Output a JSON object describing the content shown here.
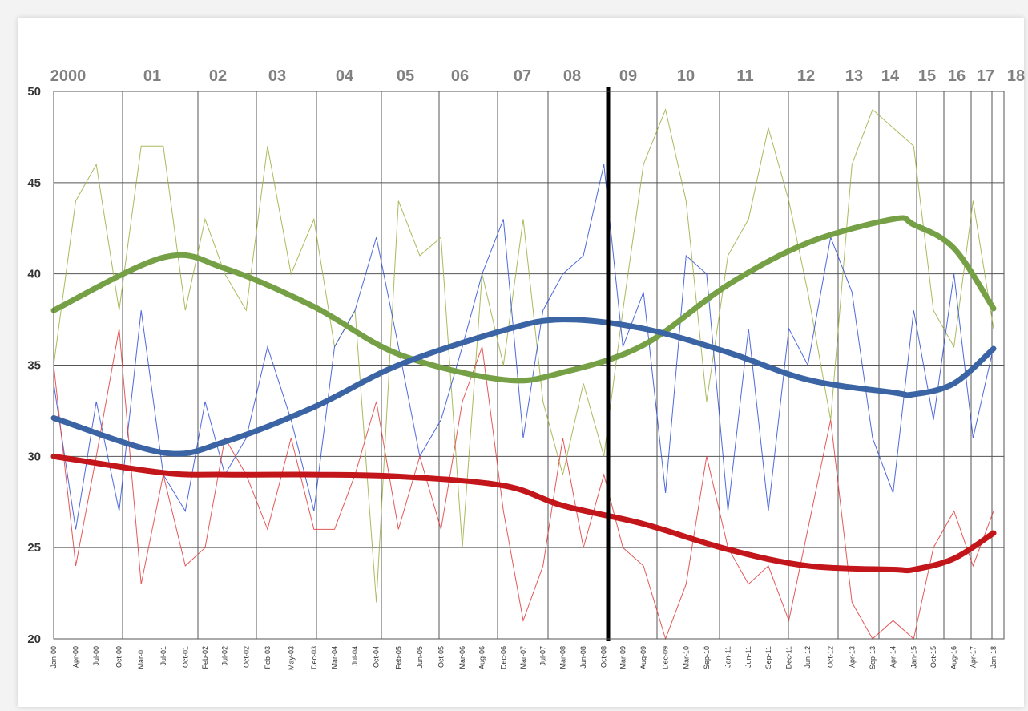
{
  "chart_data": {
    "type": "line",
    "ylim": [
      20,
      50
    ],
    "yticks": [
      20,
      25,
      30,
      35,
      40,
      45,
      50
    ],
    "grid": true,
    "x_monthly_labels": [
      "Jan-00",
      "Apr-00",
      "Jul-00",
      "Oct-00",
      "Mar-01",
      "Jul-01",
      "Oct-01",
      "Feb-02",
      "Jul-02",
      "Oct-02",
      "Feb-03",
      "May-03",
      "Dec-03",
      "Mar-04",
      "Jul-04",
      "Oct-04",
      "Feb-05",
      "Jun-05",
      "Oct-05",
      "Mar-06",
      "Aug-06",
      "Dec-06",
      "Mar-07",
      "Jul-07",
      "Mar-08",
      "Jun-08",
      "Oct-08",
      "Mar-09",
      "Aug-09",
      "Dec-09",
      "Mar-10",
      "Sep-10",
      "Jan-11",
      "Jun-11",
      "Sep-11",
      "Dec-11",
      "Jun-12",
      "Oct-12",
      "Apr-13",
      "Sep-13",
      "Apr-14",
      "Jan-15",
      "Oct-15",
      "Aug-16",
      "Apr-17",
      "Jan-18"
    ],
    "x_year_labels": [
      "2000",
      "01",
      "02",
      "03",
      "04",
      "05",
      "06",
      "07",
      "08",
      "09",
      "10",
      "11",
      "12",
      "13",
      "14",
      "15",
      "16",
      "17",
      "18"
    ],
    "vertical_marker": "Feb-09",
    "series": [
      {
        "color": "#9aaf3f",
        "style": "thin",
        "points": [
          [
            "Jan-00",
            35
          ],
          [
            "Apr-00",
            44
          ],
          [
            "Jul-00",
            46
          ],
          [
            "Oct-00",
            38
          ],
          [
            "Mar-01",
            47
          ],
          [
            "Jul-01",
            47
          ],
          [
            "Oct-01",
            38
          ],
          [
            "Feb-02",
            43
          ],
          [
            "Jul-02",
            40
          ],
          [
            "Oct-02",
            38
          ],
          [
            "Feb-03",
            47
          ],
          [
            "May-03",
            40
          ],
          [
            "Dec-03",
            43
          ],
          [
            "Mar-04",
            36
          ],
          [
            "Jul-04",
            38
          ],
          [
            "Oct-04",
            22
          ],
          [
            "Feb-05",
            44
          ],
          [
            "Jun-05",
            41
          ],
          [
            "Oct-05",
            42
          ],
          [
            "Mar-06",
            25
          ],
          [
            "Aug-06",
            40
          ],
          [
            "Dec-06",
            35
          ],
          [
            "Mar-07",
            43
          ],
          [
            "Jul-07",
            33
          ],
          [
            "Mar-08",
            29
          ],
          [
            "Jun-08",
            34
          ],
          [
            "Oct-08",
            30
          ],
          [
            "Mar-09",
            38
          ],
          [
            "Aug-09",
            46
          ],
          [
            "Dec-09",
            49
          ],
          [
            "Mar-10",
            44
          ],
          [
            "Sep-10",
            33
          ],
          [
            "Jan-11",
            41
          ],
          [
            "Jun-11",
            43
          ],
          [
            "Sep-11",
            48
          ],
          [
            "Dec-11",
            44
          ],
          [
            "Jun-12",
            39
          ],
          [
            "Oct-12",
            32
          ],
          [
            "Apr-13",
            46
          ],
          [
            "Sep-13",
            49
          ],
          [
            "Apr-14",
            48
          ],
          [
            "Jan-15",
            47
          ],
          [
            "Oct-15",
            38
          ],
          [
            "Aug-16",
            36
          ],
          [
            "Apr-17",
            44
          ],
          [
            "Jan-18",
            37
          ]
        ]
      },
      {
        "color": "#2f4fd6",
        "style": "thin",
        "points": [
          [
            "Jan-00",
            34
          ],
          [
            "Apr-00",
            26
          ],
          [
            "Jul-00",
            33
          ],
          [
            "Oct-00",
            27
          ],
          [
            "Mar-01",
            38
          ],
          [
            "Jul-01",
            29
          ],
          [
            "Oct-01",
            27
          ],
          [
            "Feb-02",
            33
          ],
          [
            "Jul-02",
            29
          ],
          [
            "Oct-02",
            31
          ],
          [
            "Feb-03",
            36
          ],
          [
            "May-03",
            32
          ],
          [
            "Dec-03",
            27
          ],
          [
            "Mar-04",
            36
          ],
          [
            "Jul-04",
            38
          ],
          [
            "Oct-04",
            42
          ],
          [
            "Feb-05",
            36
          ],
          [
            "Jun-05",
            30
          ],
          [
            "Oct-05",
            32
          ],
          [
            "Mar-06",
            36
          ],
          [
            "Aug-06",
            40
          ],
          [
            "Dec-06",
            43
          ],
          [
            "Mar-07",
            31
          ],
          [
            "Jul-07",
            38
          ],
          [
            "Mar-08",
            40
          ],
          [
            "Jun-08",
            41
          ],
          [
            "Oct-08",
            46
          ],
          [
            "Mar-09",
            36
          ],
          [
            "Aug-09",
            39
          ],
          [
            "Dec-09",
            28
          ],
          [
            "Mar-10",
            41
          ],
          [
            "Sep-10",
            40
          ],
          [
            "Jan-11",
            27
          ],
          [
            "Jun-11",
            37
          ],
          [
            "Sep-11",
            27
          ],
          [
            "Dec-11",
            37
          ],
          [
            "Jun-12",
            35
          ],
          [
            "Oct-12",
            42
          ],
          [
            "Apr-13",
            39
          ],
          [
            "Sep-13",
            31
          ],
          [
            "Apr-14",
            28
          ],
          [
            "Jan-15",
            38
          ],
          [
            "Oct-15",
            32
          ],
          [
            "Aug-16",
            40
          ],
          [
            "Apr-17",
            31
          ],
          [
            "Jan-18",
            36
          ]
        ]
      },
      {
        "color": "#e03b3b",
        "style": "thin",
        "points": [
          [
            "Jan-00",
            35
          ],
          [
            "Apr-00",
            24
          ],
          [
            "Jul-00",
            30
          ],
          [
            "Oct-00",
            37
          ],
          [
            "Mar-01",
            23
          ],
          [
            "Jul-01",
            29
          ],
          [
            "Oct-01",
            24
          ],
          [
            "Feb-02",
            25
          ],
          [
            "Jul-02",
            31
          ],
          [
            "Oct-02",
            29
          ],
          [
            "Feb-03",
            26
          ],
          [
            "May-03",
            31
          ],
          [
            "Dec-03",
            26
          ],
          [
            "Mar-04",
            26
          ],
          [
            "Jul-04",
            29
          ],
          [
            "Oct-04",
            33
          ],
          [
            "Feb-05",
            26
          ],
          [
            "Jun-05",
            30
          ],
          [
            "Oct-05",
            26
          ],
          [
            "Mar-06",
            33
          ],
          [
            "Aug-06",
            36
          ],
          [
            "Dec-06",
            27
          ],
          [
            "Mar-07",
            21
          ],
          [
            "Jul-07",
            24
          ],
          [
            "Mar-08",
            31
          ],
          [
            "Jun-08",
            25
          ],
          [
            "Oct-08",
            29
          ],
          [
            "Mar-09",
            25
          ],
          [
            "Aug-09",
            24
          ],
          [
            "Dec-09",
            20
          ],
          [
            "Mar-10",
            23
          ],
          [
            "Sep-10",
            30
          ],
          [
            "Jan-11",
            25
          ],
          [
            "Jun-11",
            23
          ],
          [
            "Sep-11",
            24
          ],
          [
            "Dec-11",
            21
          ],
          [
            "Jun-12",
            26
          ],
          [
            "Oct-12",
            32
          ],
          [
            "Apr-13",
            22
          ],
          [
            "Sep-13",
            20
          ],
          [
            "Apr-14",
            21
          ],
          [
            "Jan-15",
            20
          ],
          [
            "Oct-15",
            25
          ],
          [
            "Aug-16",
            27
          ],
          [
            "Apr-17",
            24
          ],
          [
            "Jan-18",
            27
          ]
        ]
      },
      {
        "color": "#76a045",
        "style": "thick",
        "points": [
          [
            "Jan-00",
            38
          ],
          [
            "Jul-01",
            40.9
          ],
          [
            "Jul-02",
            40.3
          ],
          [
            "Dec-03",
            38.2
          ],
          [
            "Feb-05",
            35.6
          ],
          [
            "Dec-06",
            34.2
          ],
          [
            "Mar-08",
            34.6
          ],
          [
            "Aug-09",
            36.1
          ],
          [
            "Jan-11",
            39.4
          ],
          [
            "Jun-12",
            41.7
          ],
          [
            "Apr-14",
            43
          ],
          [
            "Jan-15",
            42.7
          ],
          [
            "Aug-16",
            41.4
          ],
          [
            "Jan-18",
            38.1
          ]
        ]
      },
      {
        "color": "#3a64a4",
        "style": "thick",
        "points": [
          [
            "Jan-00",
            32.1
          ],
          [
            "Jul-01",
            30.2
          ],
          [
            "Jul-02",
            30.8
          ],
          [
            "Dec-03",
            32.7
          ],
          [
            "Feb-05",
            35
          ],
          [
            "Dec-06",
            36.9
          ],
          [
            "Mar-08",
            37.5
          ],
          [
            "Aug-09",
            37
          ],
          [
            "Jan-11",
            35.7
          ],
          [
            "Jun-12",
            34.2
          ],
          [
            "Apr-14",
            33.5
          ],
          [
            "Jan-15",
            33.4
          ],
          [
            "Aug-16",
            34
          ],
          [
            "Jan-18",
            35.9
          ]
        ]
      },
      {
        "color": "#c3161b",
        "style": "thick",
        "points": [
          [
            "Jan-00",
            30
          ],
          [
            "Jul-01",
            29.1
          ],
          [
            "Jul-02",
            29
          ],
          [
            "Dec-03",
            29
          ],
          [
            "Feb-05",
            28.9
          ],
          [
            "Dec-06",
            28.4
          ],
          [
            "Mar-08",
            27.3
          ],
          [
            "Aug-09",
            26.3
          ],
          [
            "Jan-11",
            24.9
          ],
          [
            "Jun-12",
            24
          ],
          [
            "Apr-14",
            23.8
          ],
          [
            "Jan-15",
            23.8
          ],
          [
            "Aug-16",
            24.4
          ],
          [
            "Jan-18",
            25.8
          ]
        ]
      }
    ]
  }
}
